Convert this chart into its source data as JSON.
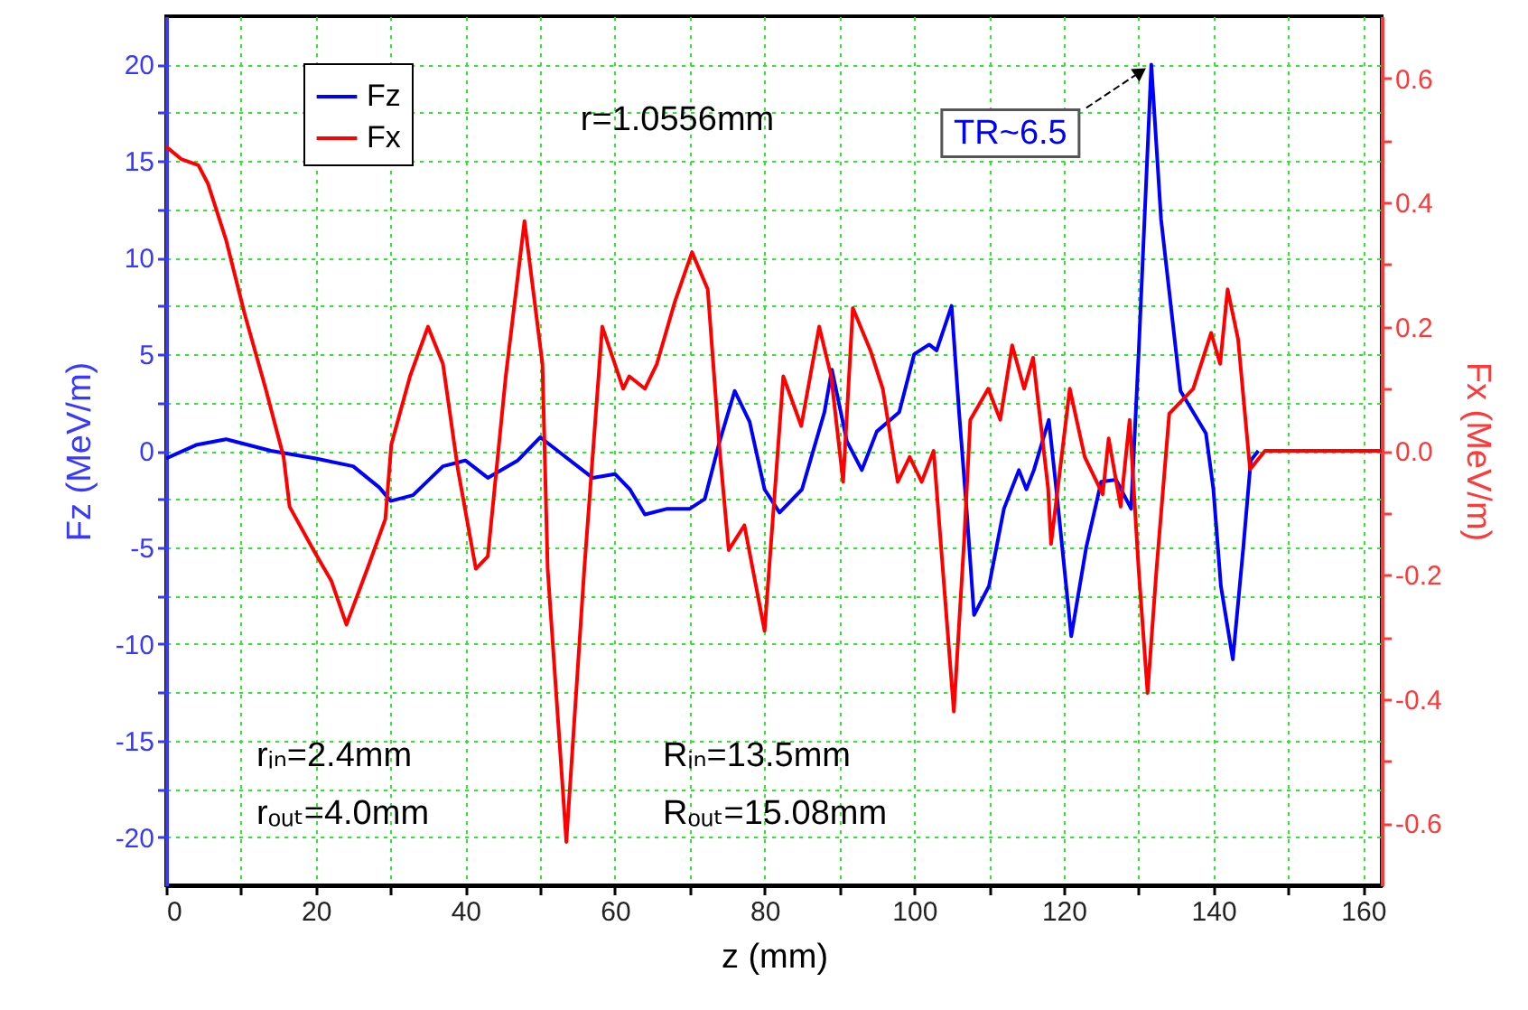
{
  "chart_data": {
    "type": "line",
    "xlabel": "z (mm)",
    "ylabel": "Fz (MeV/m)",
    "y2label": "Fx (MeV/m)",
    "annotations": [
      "r=1.0556mm",
      {
        "text": "TR~6.5",
        "x": 131.7,
        "y": 20
      },
      "rᵢₙ=2.4mm",
      "rₒᵤₜ=4.0mm",
      "Rᵢₙ=13.5mm",
      "Rₒᵤₜ=15.08mm"
    ],
    "series": [
      {
        "name": "Fz",
        "color": "#0000ff",
        "x": [
          0,
          4,
          8,
          14,
          20,
          25,
          28.5,
          30,
          33,
          37,
          40,
          43,
          47,
          50,
          53,
          57,
          60,
          62,
          64,
          67,
          70,
          72,
          74,
          76,
          78,
          80,
          82,
          85,
          88,
          89,
          91,
          93,
          95,
          98,
          100,
          102,
          103,
          105,
          106,
          107,
          108,
          110,
          112,
          114,
          115,
          116,
          118,
          119,
          121,
          123,
          125,
          127,
          129,
          130,
          131.7,
          133,
          135.6,
          139,
          140,
          141,
          142.6,
          144,
          145,
          146
        ],
        "values": [
          -0.4,
          0.3,
          0.6,
          0,
          -0.4,
          -0.8,
          -1.9,
          -2.6,
          -2.3,
          -0.8,
          -0.5,
          -1.4,
          -0.5,
          0.7,
          -0.2,
          -1.4,
          -1.2,
          -2.0,
          -3.3,
          -3.0,
          -3.0,
          -2.5,
          0.5,
          3.1,
          1.5,
          -2.0,
          -3.2,
          -2.0,
          2.0,
          4.2,
          0.5,
          -1.0,
          1.0,
          2.0,
          5.0,
          5.5,
          5.2,
          7.5,
          2.0,
          -3.0,
          -8.5,
          -7.0,
          -3.0,
          -1.0,
          -2.0,
          -1.0,
          1.6,
          -2.0,
          -9.6,
          -5.0,
          -1.6,
          -1.5,
          -3.0,
          5.0,
          20.0,
          12.0,
          3.1,
          0.9,
          -2.0,
          -7.0,
          -10.8,
          -5.0,
          -0.5,
          0
        ]
      },
      {
        "name": "Fx",
        "color": "#ff0000",
        "axis": "y2",
        "x": [
          0,
          2,
          4.3,
          5.6,
          8,
          10.5,
          13.3,
          15.7,
          16.5,
          19.7,
          22.1,
          24.1,
          26.9,
          29.3,
          30.1,
          32.6,
          35,
          37,
          39,
          41.4,
          43,
          45.4,
          47.9,
          50.3,
          51,
          53.5,
          55.9,
          58.3,
          61.1,
          61.9,
          64,
          65.6,
          68,
          70.3,
          72.4,
          74,
          75.2,
          77.3,
          80,
          82.5,
          84.9,
          87.3,
          88.9,
          90.5,
          91.8,
          94.2,
          95.8,
          97.8,
          99.4,
          101,
          102.6,
          105.3,
          106.7,
          107.5,
          109.9,
          111.5,
          113.1,
          114.7,
          115.9,
          117.9,
          118.3,
          120.8,
          122.8,
          125.2,
          126,
          127.6,
          128.8,
          130,
          131.2,
          132.4,
          134.1,
          137.3,
          139.7,
          140.9,
          141.9,
          143.3,
          144.9,
          146.9,
          162.5
        ],
        "values": [
          0.49,
          0.47,
          0.46,
          0.43,
          0.34,
          0.22,
          0.1,
          -0.01,
          -0.09,
          -0.16,
          -0.21,
          -0.28,
          -0.19,
          -0.11,
          0.01,
          0.12,
          0.2,
          0.14,
          -0.03,
          -0.19,
          -0.17,
          0.12,
          0.37,
          0.14,
          -0.19,
          -0.63,
          -0.19,
          0.2,
          0.1,
          0.12,
          0.1,
          0.14,
          0.24,
          0.32,
          0.26,
          0,
          -0.16,
          -0.12,
          -0.29,
          0.12,
          0.04,
          0.2,
          0.12,
          -0.05,
          0.23,
          0.16,
          0.1,
          -0.05,
          -0.01,
          -0.05,
          0,
          -0.42,
          -0.14,
          0.05,
          0.1,
          0.05,
          0.17,
          0.1,
          0.15,
          -0.06,
          -0.15,
          0.1,
          -0.01,
          -0.07,
          0.02,
          -0.09,
          0.05,
          -0.19,
          -0.39,
          -0.19,
          0.06,
          0.1,
          0.19,
          0.14,
          0.26,
          0.18,
          -0.03,
          0,
          0
        ]
      }
    ],
    "xlim": [
      0,
      162.5
    ],
    "xticks": [
      0,
      {
        "value": 10,
        "label": null
      },
      20,
      {
        "value": 30,
        "label": null
      },
      40,
      {
        "value": 50,
        "label": null
      },
      60,
      {
        "value": 70,
        "label": null
      },
      80,
      {
        "value": 90,
        "label": null
      },
      100,
      {
        "value": 110,
        "label": null
      },
      120,
      {
        "value": 130,
        "label": null
      },
      140,
      {
        "value": 150,
        "label": null
      },
      160
    ],
    "ylim": [
      -22.5,
      22.5
    ],
    "yticks": [
      -20,
      {
        "value": -17.5,
        "label": null
      },
      -15,
      {
        "value": -12.5,
        "label": null
      },
      -10,
      {
        "value": -7.5,
        "label": null
      },
      -5,
      {
        "value": -2.5,
        "label": null
      },
      0,
      {
        "value": 2.5,
        "label": null
      },
      5,
      {
        "value": 7.5,
        "label": null
      },
      10,
      {
        "value": 12.5,
        "label": null
      },
      15,
      {
        "value": 17.5,
        "label": null
      },
      20
    ],
    "y2lim": [
      -0.7,
      0.7
    ],
    "y2ticks": [
      -0.6,
      {
        "value": -0.5,
        "label": null
      },
      -0.4,
      {
        "value": -0.3,
        "label": null
      },
      -0.2,
      {
        "value": -0.1,
        "label": null
      },
      {
        "value": 0,
        "label": "0.0"
      },
      {
        "value": 0.1,
        "label": null
      },
      0.2,
      {
        "value": 0.3,
        "label": null
      },
      0.4,
      {
        "value": 0.5,
        "label": null
      },
      0.6
    ],
    "grid": true,
    "legend": "top left"
  }
}
